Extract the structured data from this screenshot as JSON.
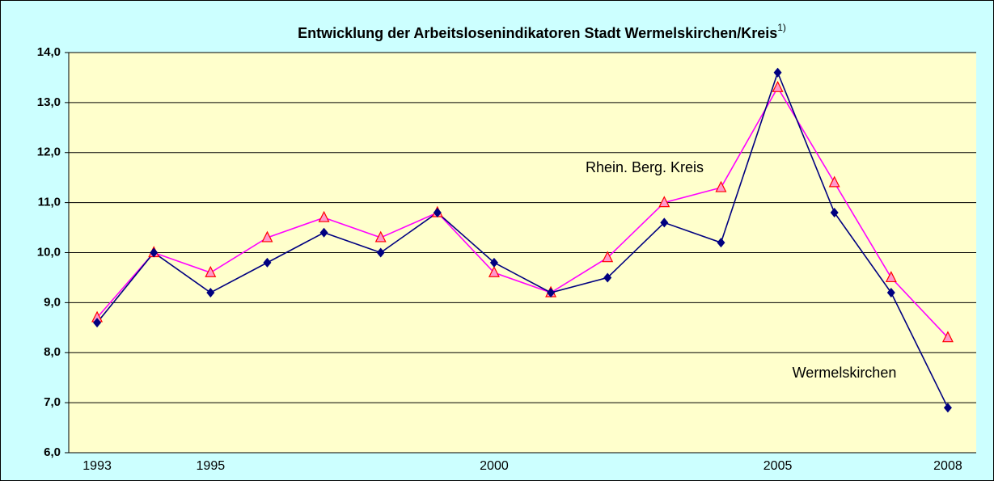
{
  "chart_data": {
    "type": "line",
    "title": "Entwicklung der Arbeitslosenindikatoren Stadt Wermelskirchen/Kreis",
    "title_note": "1)",
    "categories": [
      "1993",
      null,
      "1995",
      null,
      null,
      null,
      null,
      "2000",
      null,
      null,
      null,
      null,
      "2005",
      null,
      null,
      "2008"
    ],
    "series": [
      {
        "name": "Wermelskirchen",
        "color": "#000080",
        "marker": "diamond",
        "values": [
          8.6,
          10.0,
          9.2,
          9.8,
          10.4,
          10.0,
          10.8,
          9.8,
          9.2,
          9.5,
          10.6,
          10.2,
          13.6,
          10.8,
          9.2,
          6.9
        ]
      },
      {
        "name": "Rhein. Berg. Kreis",
        "color": "#ff00ff",
        "marker": "triangle",
        "values": [
          8.7,
          10.0,
          9.6,
          10.3,
          10.7,
          10.3,
          10.8,
          9.6,
          9.2,
          9.9,
          11.0,
          11.3,
          13.3,
          11.4,
          9.5,
          8.3
        ]
      }
    ],
    "ylim": [
      6,
      14
    ],
    "yticks": [
      {
        "value": 6,
        "label": "6,0"
      },
      {
        "value": 7,
        "label": "7,0"
      },
      {
        "value": 8,
        "label": "8,0"
      },
      {
        "value": 9,
        "label": "9,0"
      },
      {
        "value": 10,
        "label": "10,0"
      },
      {
        "value": 11,
        "label": "11,0"
      },
      {
        "value": 12,
        "label": "12,0"
      },
      {
        "value": 13,
        "label": "13,0"
      },
      {
        "value": 14,
        "label": "14,0"
      }
    ],
    "grid": true
  }
}
